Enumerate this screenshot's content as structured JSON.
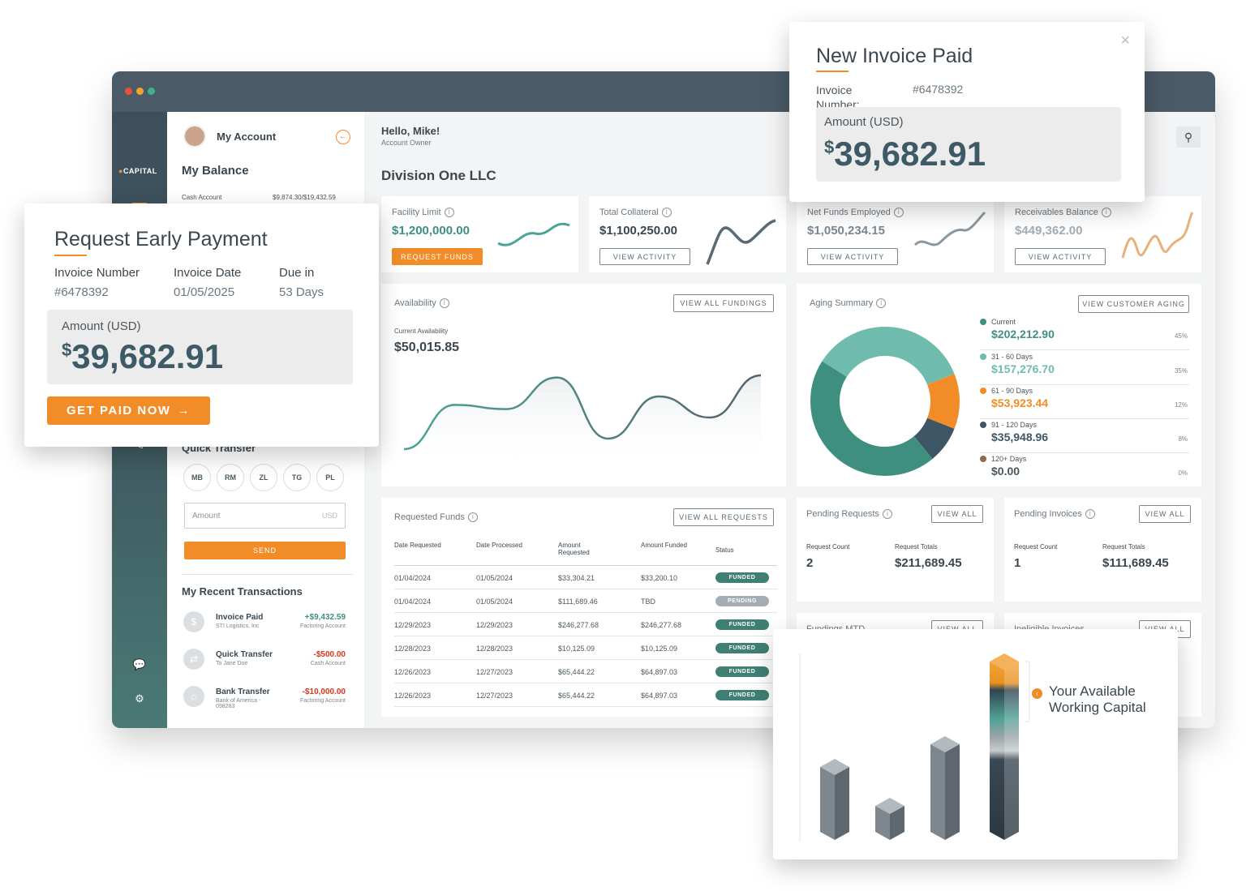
{
  "brand": {
    "logo": "CAPITAL"
  },
  "account": {
    "title": "My Account",
    "balance_title": "My Balance",
    "cash_label": "Cash Account",
    "cash_value": "$9,874.30/$19,432.59"
  },
  "quick_transfer": {
    "title": "Quick Transfer",
    "contacts": [
      "MB",
      "RM",
      "ZL",
      "TG",
      "PL"
    ],
    "amount_placeholder": "Amount",
    "currency": "USD",
    "send_label": "SEND"
  },
  "transactions": {
    "title": "My Recent Transactions",
    "items": [
      {
        "name": "Invoice Paid",
        "sub": "STI Logistics, Inc",
        "amount": "+$9,432.59",
        "account": "Factoring Account",
        "color": "#3f8f80"
      },
      {
        "name": "Quick Transfer",
        "sub": "To Jane Doe",
        "amount": "-$500.00",
        "account": "Cash Account",
        "color": "#d9361f"
      },
      {
        "name": "Bank Transfer",
        "sub": "Bank of America - 098263",
        "amount": "-$10,000.00",
        "account": "Factoring Account",
        "color": "#d9361f"
      }
    ]
  },
  "header": {
    "greeting": "Hello, Mike!",
    "role": "Account Owner",
    "company": "Division One LLC"
  },
  "metrics": [
    {
      "label": "Facility Limit",
      "value": "$1,200,000.00",
      "button": "REQUEST FUNDS",
      "color": "#3f8f80",
      "spark": "#4aa596"
    },
    {
      "label": "Total Collateral",
      "value": "$1,100,250.00",
      "button": "VIEW ACTIVITY",
      "color": "#3a4750",
      "spark": "#5a6a74"
    },
    {
      "label": "Net Funds Employed",
      "value": "$1,050,234.15",
      "button": "VIEW ACTIVITY",
      "color": "#7c878f",
      "spark": "#8b979f"
    },
    {
      "label": "Receivables Balance",
      "value": "$449,362.00",
      "button": "VIEW ACTIVITY",
      "color": "#a3adb3",
      "spark": "#e8b07a"
    }
  ],
  "availability": {
    "title": "Availability",
    "button": "VIEW ALL FUNDINGS",
    "sub_label": "Current Availability",
    "value": "$50,015.85"
  },
  "aging": {
    "title": "Aging Summary",
    "button": "VIEW CUSTOMER AGING",
    "items": [
      {
        "label": "Current",
        "value": "$202,212.90",
        "pct": "45%",
        "color": "#3f8f80",
        "share": 45
      },
      {
        "label": "31 - 60 Days",
        "value": "$157,276.70",
        "pct": "35%",
        "color": "#6fbcae",
        "share": 35
      },
      {
        "label": "61 - 90 Days",
        "value": "$53,923.44",
        "pct": "12%",
        "color": "#f28c28",
        "share": 12
      },
      {
        "label": "91 - 120 Days",
        "value": "$35,948.96",
        "pct": "8%",
        "color": "#3d5665",
        "share": 8
      },
      {
        "label": "120+ Days",
        "value": "$0.00",
        "pct": "0%",
        "color": "#8a6a52",
        "share": 0
      }
    ]
  },
  "requested": {
    "title": "Requested Funds",
    "button": "VIEW ALL REQUESTS",
    "columns": [
      "Date Requested",
      "Date Processed",
      "Amount Requested",
      "Amount Funded",
      "Status"
    ],
    "rows": [
      {
        "req": "01/04/2024",
        "proc": "01/05/2024",
        "amt": "$33,304.21",
        "funded": "$33,200.10",
        "status": "FUNDED"
      },
      {
        "req": "01/04/2024",
        "proc": "01/05/2024",
        "amt": "$111,689.46",
        "funded": "TBD",
        "status": "PENDING"
      },
      {
        "req": "12/29/2023",
        "proc": "12/29/2023",
        "amt": "$246,277.68",
        "funded": "$246,277.68",
        "status": "FUNDED"
      },
      {
        "req": "12/28/2023",
        "proc": "12/28/2023",
        "amt": "$10,125.09",
        "funded": "$10,125.09",
        "status": "FUNDED"
      },
      {
        "req": "12/26/2023",
        "proc": "12/27/2023",
        "amt": "$65,444.22",
        "funded": "$64,897.03",
        "status": "FUNDED"
      },
      {
        "req": "12/26/2023",
        "proc": "12/27/2023",
        "amt": "$65,444.22",
        "funded": "$64,897.03",
        "status": "FUNDED"
      }
    ]
  },
  "pending_requests": {
    "title": "Pending Requests",
    "button": "VIEW ALL",
    "count_label": "Request Count",
    "totals_label": "Request Totals",
    "count": "2",
    "total": "$211,689.45"
  },
  "pending_invoices": {
    "title": "Pending Invoices",
    "button": "VIEW ALL",
    "count_label": "Request Count",
    "totals_label": "Request Totals",
    "count": "1",
    "total": "$111,689.45"
  },
  "partial_cards": {
    "left": "Fundings MTD",
    "right": "Ineligible Invoices",
    "button": "VIEW ALL"
  },
  "popup_paid": {
    "title": "New Invoice Paid",
    "invoice_label": "Invoice Number:",
    "invoice_value": "#6478392",
    "amount_label": "Amount (USD)",
    "currency": "$",
    "amount": "39,682.91"
  },
  "popup_request": {
    "title": "Request Early Payment",
    "cols": [
      {
        "label": "Invoice Number",
        "value": "#6478392"
      },
      {
        "label": "Invoice Date",
        "value": "01/05/2025"
      },
      {
        "label": "Due in",
        "value": "53 Days"
      }
    ],
    "amount_label": "Amount (USD)",
    "currency": "$",
    "amount": "39,682.91",
    "button": "GET PAID NOW"
  },
  "capital_popup": {
    "label_line1": "Your Available",
    "label_line2": "Working Capital"
  },
  "chart_data": {
    "type": "line",
    "title": "Availability",
    "xlabel": "",
    "ylabel": "",
    "series": [
      {
        "values": [
          20,
          62,
          58,
          88,
          30,
          70,
          50,
          90
        ]
      }
    ]
  }
}
